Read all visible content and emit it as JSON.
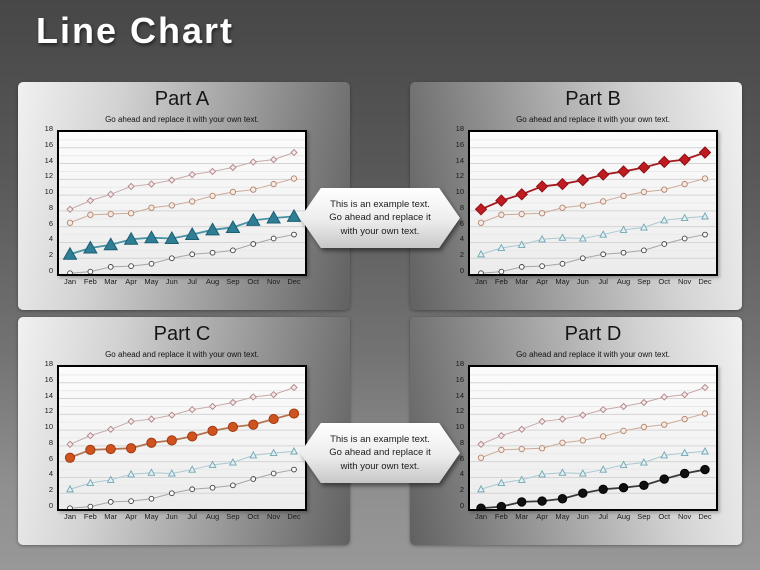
{
  "slide_title": "Line Chart",
  "callout": {
    "text": "This is an example text.\nGo ahead and replace it\nwith your own text."
  },
  "colors": {
    "slide_bg_top": "#474747",
    "slide_bg_bottom": "#989898",
    "panel_light": "#f1f1f1",
    "panel_dark": "#616161",
    "plot_bg": "#fcfcfc",
    "plot_border": "#000000",
    "gridline_major": "#d4d4d4",
    "gridline_minor": "#eaeaea",
    "highlight_teal": "#2e7e96",
    "highlight_red": "#bf1b21",
    "highlight_orange": "#d0521f",
    "highlight_black": "#101010"
  },
  "chart_data": {
    "type": "line",
    "categories": [
      "Jan",
      "Feb",
      "Mar",
      "Apr",
      "May",
      "Jun",
      "Jul",
      "Aug",
      "Sep",
      "Oct",
      "Nov",
      "Dec"
    ],
    "ylim": [
      0,
      18
    ],
    "yticks": [
      0,
      2,
      4,
      6,
      8,
      10,
      12,
      14,
      16,
      18
    ],
    "grid": "horizontal",
    "legend": "none",
    "series": [
      {
        "id": "diamond-series",
        "marker": "diamond",
        "values": [
          8.2,
          9.3,
          10.1,
          11.1,
          11.4,
          11.9,
          12.6,
          13.0,
          13.5,
          14.2,
          14.5,
          15.4
        ],
        "muted_color": "#b08487",
        "muted_fill": "#f4eaea",
        "muted_line": "#c8a8a8",
        "hi_color": "#8a1014",
        "hi_fill": "#bf1b21",
        "hi_line": "#a51a1f"
      },
      {
        "id": "tan-circle-series",
        "marker": "circle",
        "values": [
          6.5,
          7.5,
          7.6,
          7.7,
          8.4,
          8.7,
          9.2,
          9.9,
          10.4,
          10.7,
          11.4,
          12.1
        ],
        "muted_color": "#b5836c",
        "muted_fill": "#f4ece4",
        "muted_line": "#ccab99",
        "hi_color": "#9e3a12",
        "hi_fill": "#d0521f",
        "hi_line": "#b4744f"
      },
      {
        "id": "teal-triangle-series",
        "marker": "triangle",
        "values": [
          2.5,
          3.3,
          3.7,
          4.4,
          4.6,
          4.5,
          5.0,
          5.6,
          5.9,
          6.8,
          7.1,
          7.3
        ],
        "muted_color": "#6ea6b2",
        "muted_fill": "#e6f0f2",
        "muted_line": "#a9c9d0",
        "hi_color": "#1d5d71",
        "hi_fill": "#2e7e96",
        "hi_line": "#4a92a6"
      },
      {
        "id": "dark-circle-series",
        "marker": "circle-small",
        "values": [
          0.1,
          0.3,
          0.9,
          1.0,
          1.3,
          2.0,
          2.5,
          2.7,
          3.0,
          3.8,
          4.5,
          5.0
        ],
        "muted_color": "#3f3f3f",
        "muted_fill": "#fdfdfd",
        "muted_line": "#a6a6a6",
        "hi_color": "#000000",
        "hi_fill": "#101010",
        "hi_line": "#3a3a3a"
      }
    ],
    "panels": [
      {
        "label": "Part A",
        "subtitle": "Go ahead and replace it with your own text.",
        "highlight": "teal-triangle-series"
      },
      {
        "label": "Part B",
        "subtitle": "Go ahead and replace it with your own text.",
        "highlight": "diamond-series"
      },
      {
        "label": "Part C",
        "subtitle": "Go ahead and replace it with your own text.",
        "highlight": "tan-circle-series"
      },
      {
        "label": "Part D",
        "subtitle": "Go ahead and replace it with your own text.",
        "highlight": "dark-circle-series"
      }
    ]
  }
}
